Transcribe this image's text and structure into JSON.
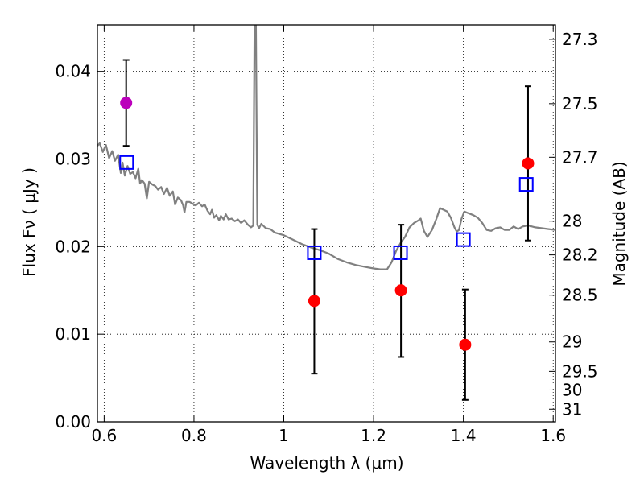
{
  "chart_data": {
    "type": "scatter",
    "xlabel": "Wavelength  λ (μm)",
    "ylabel": "Flux  Fν  ( μJy )",
    "y2label": "Magnitude (AB)",
    "xlim": [
      0.585,
      1.605
    ],
    "ylim": [
      0.0,
      0.0453
    ],
    "x_ticks": [
      0.6,
      0.8,
      1.0,
      1.2,
      1.4,
      1.6
    ],
    "x_tick_labels": [
      "0.6",
      "0.8",
      "1",
      "1.2",
      "1.4",
      "1.6"
    ],
    "y_ticks": [
      0.0,
      0.01,
      0.02,
      0.03,
      0.04
    ],
    "y_tick_labels": [
      "0.00",
      "0.01",
      "0.02",
      "0.03",
      "0.04"
    ],
    "magnitude_ticks": [
      27.3,
      27.5,
      27.7,
      28,
      28.2,
      28.5,
      29,
      29.5,
      30,
      31
    ],
    "grid": true,
    "colors": {
      "model": "#808080",
      "observed": "#ff0000",
      "observed_highlight": "#bb00bb",
      "synthetic": "#0000ff",
      "errorbar": "#000000"
    },
    "model_spectrum": [
      [
        0.585,
        0.0315
      ],
      [
        0.59,
        0.0318
      ],
      [
        0.597,
        0.0308
      ],
      [
        0.604,
        0.0316
      ],
      [
        0.611,
        0.0301
      ],
      [
        0.618,
        0.0309
      ],
      [
        0.624,
        0.0298
      ],
      [
        0.631,
        0.0305
      ],
      [
        0.637,
        0.0284
      ],
      [
        0.641,
        0.0296
      ],
      [
        0.646,
        0.0281
      ],
      [
        0.652,
        0.0292
      ],
      [
        0.658,
        0.0283
      ],
      [
        0.664,
        0.0285
      ],
      [
        0.67,
        0.0278
      ],
      [
        0.676,
        0.0289
      ],
      [
        0.68,
        0.0272
      ],
      [
        0.684,
        0.0276
      ],
      [
        0.69,
        0.0272
      ],
      [
        0.695,
        0.0255
      ],
      [
        0.7,
        0.0274
      ],
      [
        0.707,
        0.0271
      ],
      [
        0.714,
        0.0269
      ],
      [
        0.72,
        0.0265
      ],
      [
        0.727,
        0.0268
      ],
      [
        0.733,
        0.026
      ],
      [
        0.74,
        0.0267
      ],
      [
        0.746,
        0.0258
      ],
      [
        0.753,
        0.0263
      ],
      [
        0.758,
        0.0248
      ],
      [
        0.764,
        0.0256
      ],
      [
        0.771,
        0.0253
      ],
      [
        0.776,
        0.0247
      ],
      [
        0.779,
        0.0239
      ],
      [
        0.783,
        0.0251
      ],
      [
        0.79,
        0.0251
      ],
      [
        0.797,
        0.0249
      ],
      [
        0.804,
        0.0247
      ],
      [
        0.811,
        0.025
      ],
      [
        0.818,
        0.0246
      ],
      [
        0.824,
        0.0248
      ],
      [
        0.83,
        0.0241
      ],
      [
        0.836,
        0.0237
      ],
      [
        0.84,
        0.0242
      ],
      [
        0.845,
        0.0233
      ],
      [
        0.85,
        0.0236
      ],
      [
        0.856,
        0.023
      ],
      [
        0.86,
        0.0235
      ],
      [
        0.866,
        0.0231
      ],
      [
        0.871,
        0.0237
      ],
      [
        0.877,
        0.0231
      ],
      [
        0.884,
        0.0232
      ],
      [
        0.891,
        0.0229
      ],
      [
        0.898,
        0.0231
      ],
      [
        0.905,
        0.0227
      ],
      [
        0.912,
        0.023
      ],
      [
        0.92,
        0.0225
      ],
      [
        0.927,
        0.0222
      ],
      [
        0.932,
        0.0224
      ],
      [
        0.935,
        0.0453
      ],
      [
        0.938,
        0.0453
      ],
      [
        0.941,
        0.0225
      ],
      [
        0.945,
        0.0221
      ],
      [
        0.95,
        0.0226
      ],
      [
        0.96,
        0.0221
      ],
      [
        0.97,
        0.022
      ],
      [
        0.98,
        0.0216
      ],
      [
        1.0,
        0.0213
      ],
      [
        1.02,
        0.0208
      ],
      [
        1.04,
        0.0203
      ],
      [
        1.06,
        0.0199
      ],
      [
        1.08,
        0.0196
      ],
      [
        1.1,
        0.0192
      ],
      [
        1.12,
        0.0186
      ],
      [
        1.14,
        0.0182
      ],
      [
        1.16,
        0.0179
      ],
      [
        1.18,
        0.0177
      ],
      [
        1.2,
        0.0175
      ],
      [
        1.215,
        0.0174
      ],
      [
        1.23,
        0.0174
      ],
      [
        1.24,
        0.0182
      ],
      [
        1.25,
        0.0195
      ],
      [
        1.26,
        0.0204
      ],
      [
        1.27,
        0.0211
      ],
      [
        1.28,
        0.0222
      ],
      [
        1.29,
        0.0227
      ],
      [
        1.3,
        0.023
      ],
      [
        1.305,
        0.0232
      ],
      [
        1.312,
        0.0218
      ],
      [
        1.32,
        0.0211
      ],
      [
        1.33,
        0.0219
      ],
      [
        1.34,
        0.0232
      ],
      [
        1.348,
        0.0244
      ],
      [
        1.356,
        0.0242
      ],
      [
        1.364,
        0.024
      ],
      [
        1.372,
        0.0233
      ],
      [
        1.38,
        0.0222
      ],
      [
        1.385,
        0.0217
      ],
      [
        1.39,
        0.0219
      ],
      [
        1.396,
        0.0232
      ],
      [
        1.402,
        0.024
      ],
      [
        1.412,
        0.0238
      ],
      [
        1.422,
        0.0236
      ],
      [
        1.432,
        0.0233
      ],
      [
        1.442,
        0.0227
      ],
      [
        1.452,
        0.0219
      ],
      [
        1.462,
        0.0218
      ],
      [
        1.472,
        0.0221
      ],
      [
        1.482,
        0.0222
      ],
      [
        1.492,
        0.0219
      ],
      [
        1.502,
        0.0219
      ],
      [
        1.512,
        0.0223
      ],
      [
        1.522,
        0.022
      ],
      [
        1.532,
        0.0223
      ],
      [
        1.545,
        0.0224
      ],
      [
        1.56,
        0.0222
      ],
      [
        1.575,
        0.0221
      ],
      [
        1.59,
        0.022
      ],
      [
        1.605,
        0.0219
      ]
    ],
    "observed_points": [
      {
        "x": 0.649,
        "y": 0.0364,
        "yerr_low": 0.0315,
        "yerr_high": 0.0413,
        "highlight": true
      },
      {
        "x": 1.068,
        "y": 0.0138,
        "yerr_low": 0.0055,
        "yerr_high": 0.022,
        "highlight": false
      },
      {
        "x": 1.261,
        "y": 0.015,
        "yerr_low": 0.0074,
        "yerr_high": 0.0225,
        "highlight": false
      },
      {
        "x": 1.404,
        "y": 0.0088,
        "yerr_low": 0.0025,
        "yerr_high": 0.0151,
        "highlight": false
      },
      {
        "x": 1.544,
        "y": 0.0295,
        "yerr_low": 0.0207,
        "yerr_high": 0.0383,
        "highlight": false
      }
    ],
    "synthetic_points": [
      {
        "x": 0.65,
        "y": 0.0296
      },
      {
        "x": 1.068,
        "y": 0.0193
      },
      {
        "x": 1.26,
        "y": 0.0193
      },
      {
        "x": 1.4,
        "y": 0.0208
      },
      {
        "x": 1.54,
        "y": 0.0271
      }
    ]
  }
}
